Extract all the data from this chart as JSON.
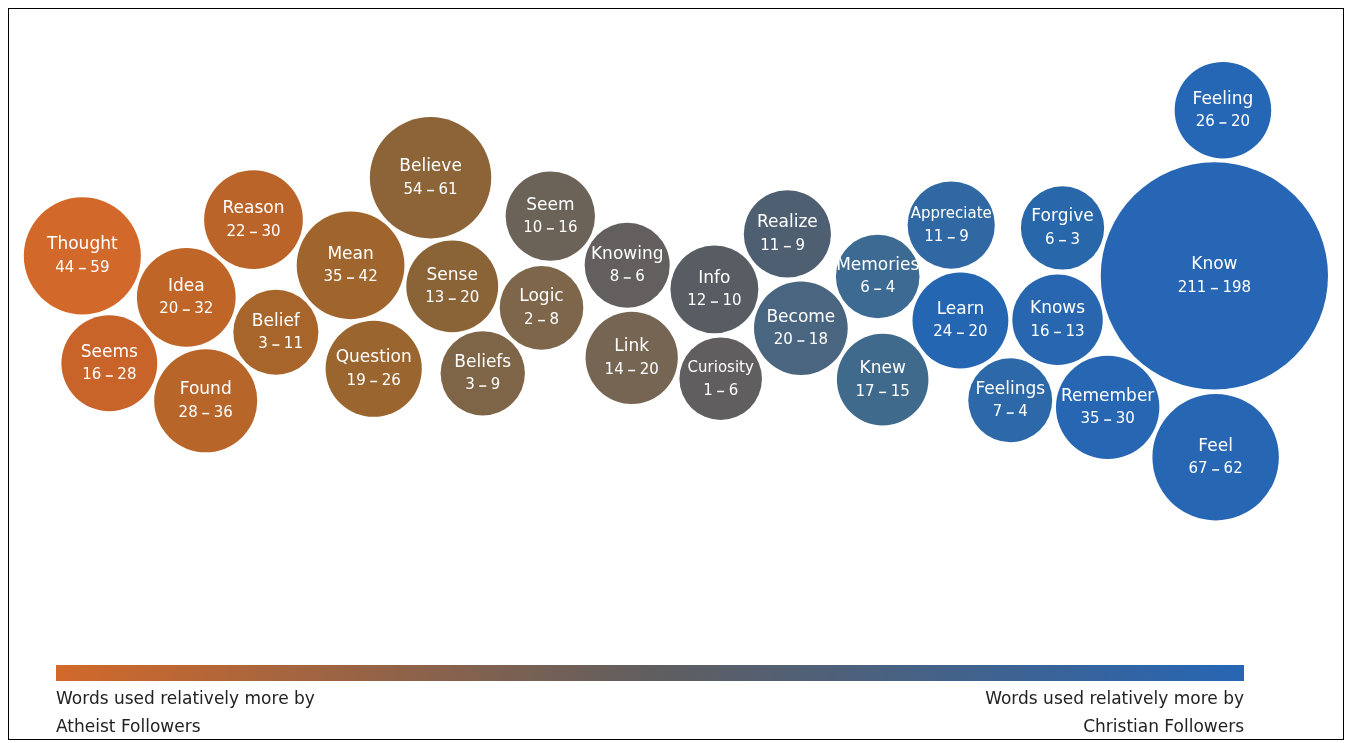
{
  "chart_data": {
    "type": "other",
    "categories": [
      "Thought",
      "Seems",
      "Idea",
      "Found",
      "Reason",
      "Belief",
      "Mean",
      "Question",
      "Believe",
      "Sense",
      "Beliefs",
      "Logic",
      "Seem",
      "Knowing",
      "Link",
      "Curiosity",
      "Info",
      "Realize",
      "Become",
      "Knew",
      "Memories",
      "Appreciate",
      "Learn",
      "Feelings",
      "Forgive",
      "Knows",
      "Remember",
      "Feel",
      "Feeling",
      "Know"
    ],
    "series": [
      {
        "values": [
          44,
          16,
          20,
          28,
          22,
          3,
          35,
          19,
          54,
          13,
          3,
          2,
          10,
          8,
          14,
          1,
          12,
          11,
          20,
          17,
          6,
          11,
          24,
          7,
          6,
          16,
          35,
          67,
          26,
          211
        ],
        "colors": [
          "#d2692a",
          "#c8632a",
          "#c06528",
          "#b8652a",
          "#bb6429",
          "#a8652b",
          "#a0652c",
          "#9a652e",
          "#8c6438",
          "#8a6337",
          "#7e6547",
          "#7e664a",
          "#6b6358",
          "#625f5e",
          "#756552",
          "#605e5f",
          "#585d64",
          "#4f5f72",
          "#4a6580",
          "#406a8c",
          "#3d6a93",
          "#2f68a3",
          "#2566b2",
          "#2d69a8",
          "#2967ab",
          "#2867b0",
          "#2766b2",
          "#2766b3",
          "#2566b5",
          "#2766b4"
        ]
      },
      {
        "values": [
          59,
          28,
          32,
          36,
          30,
          11,
          42,
          26,
          61,
          20,
          9,
          8,
          16,
          6,
          20,
          6,
          10,
          9,
          18,
          15,
          4,
          9,
          20,
          4,
          3,
          13,
          30,
          62,
          20,
          198
        ]
      }
    ],
    "data_labels": true,
    "annotations": [
      "Words used relatively more by Atheist Followers",
      "Words used relatively more by Christian Followers"
    ]
  }
}
